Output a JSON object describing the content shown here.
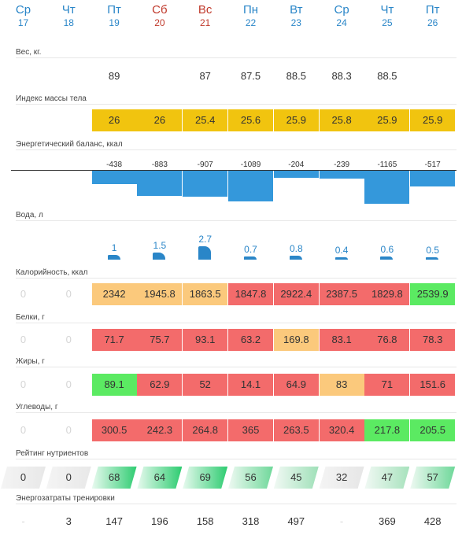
{
  "days": [
    {
      "name": "Ср",
      "date": "17",
      "weekend": false
    },
    {
      "name": "Чт",
      "date": "18",
      "weekend": false
    },
    {
      "name": "Пт",
      "date": "19",
      "weekend": false
    },
    {
      "name": "Сб",
      "date": "20",
      "weekend": true
    },
    {
      "name": "Вс",
      "date": "21",
      "weekend": true
    },
    {
      "name": "Пн",
      "date": "22",
      "weekend": false
    },
    {
      "name": "Вт",
      "date": "23",
      "weekend": false
    },
    {
      "name": "Ср",
      "date": "24",
      "weekend": false
    },
    {
      "name": "Чт",
      "date": "25",
      "weekend": false
    },
    {
      "name": "Пт",
      "date": "26",
      "weekend": false
    }
  ],
  "weight": {
    "label": "Вес, кг.",
    "values": [
      "",
      "",
      "89",
      "",
      "87",
      "87.5",
      "88.5",
      "88.3",
      "88.5",
      ""
    ]
  },
  "bmi": {
    "label": "Индекс массы тела",
    "values": [
      "",
      "",
      "26",
      "26",
      "25.4",
      "25.6",
      "25.9",
      "25.8",
      "25.9",
      "25.9"
    ]
  },
  "energy": {
    "label": "Энергетический баланс, ккал",
    "values": [
      "",
      "",
      "-438",
      "-883",
      "-907",
      "-1089",
      "-204",
      "-239",
      "-1165",
      "-517"
    ]
  },
  "water": {
    "label": "Вода, л",
    "values": [
      "",
      "",
      "1",
      "1.5",
      "2.7",
      "0.7",
      "0.8",
      "0.4",
      "0.6",
      "0.5"
    ]
  },
  "calories": {
    "label": "Калорийность, ккал",
    "values": [
      "0",
      "0",
      "2342",
      "1945.8",
      "1863.5",
      "1847.8",
      "2922.4",
      "2387.5",
      "1829.8",
      "2539.9"
    ],
    "colors": [
      "none",
      "none",
      "orange",
      "orange",
      "orange",
      "salmon",
      "salmon",
      "salmon",
      "salmon",
      "green"
    ]
  },
  "protein": {
    "label": "Белки, г",
    "values": [
      "0",
      "0",
      "71.7",
      "75.7",
      "93.1",
      "63.2",
      "169.8",
      "83.1",
      "76.8",
      "78.3"
    ],
    "colors": [
      "none",
      "none",
      "salmon",
      "salmon",
      "salmon",
      "salmon",
      "orange",
      "salmon",
      "salmon",
      "salmon"
    ]
  },
  "fat": {
    "label": "Жиры, г",
    "values": [
      "0",
      "0",
      "89.1",
      "62.9",
      "52",
      "14.1",
      "64.9",
      "83",
      "71",
      "151.6"
    ],
    "colors": [
      "none",
      "none",
      "green",
      "salmon",
      "salmon",
      "salmon",
      "salmon",
      "orange",
      "salmon",
      "salmon"
    ]
  },
  "carbs": {
    "label": "Углеводы, г",
    "values": [
      "0",
      "0",
      "300.5",
      "242.3",
      "264.8",
      "365",
      "263.5",
      "320.4",
      "217.8",
      "205.5"
    ],
    "colors": [
      "none",
      "none",
      "salmon",
      "salmon",
      "salmon",
      "salmon",
      "salmon",
      "salmon",
      "green",
      "green"
    ]
  },
  "rating": {
    "label": "Рейтинг нутриентов",
    "values": [
      "0",
      "0",
      "68",
      "64",
      "69",
      "56",
      "45",
      "32",
      "47",
      "57"
    ]
  },
  "training": {
    "label": "Энергозатраты тренировки",
    "values": [
      "-",
      "3",
      "147",
      "196",
      "158",
      "318",
      "497",
      "-",
      "369",
      "428"
    ]
  },
  "colors": {
    "accent": "#2a86c8",
    "weekend": "#c0392b",
    "bmi": "#f1c40f",
    "orange": "#fbc97c",
    "salmon": "#f36b6b",
    "green": "#5bea62",
    "energy_bar": "#3498db"
  }
}
